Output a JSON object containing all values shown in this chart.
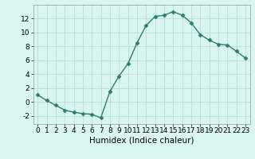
{
  "x": [
    0,
    1,
    2,
    3,
    4,
    5,
    6,
    7,
    8,
    9,
    10,
    11,
    12,
    13,
    14,
    15,
    16,
    17,
    18,
    19,
    20,
    21,
    22,
    23
  ],
  "y": [
    1,
    0.2,
    -0.5,
    -1.2,
    -1.5,
    -1.7,
    -1.8,
    -2.3,
    1.5,
    3.7,
    5.5,
    8.5,
    11.0,
    12.3,
    12.5,
    13.0,
    12.5,
    11.4,
    9.7,
    8.9,
    8.3,
    8.2,
    7.3,
    6.3
  ],
  "line_color": "#2d7d6e",
  "marker": "D",
  "marker_size": 2.5,
  "bg_color": "#d8f5f0",
  "grid_color": "#b8ddd8",
  "xlabel": "Humidex (Indice chaleur)",
  "xlim": [
    -0.5,
    23.5
  ],
  "ylim": [
    -3.2,
    14.0
  ],
  "yticks": [
    -2,
    0,
    2,
    4,
    6,
    8,
    10,
    12
  ],
  "xticks": [
    0,
    1,
    2,
    3,
    4,
    5,
    6,
    7,
    8,
    9,
    10,
    11,
    12,
    13,
    14,
    15,
    16,
    17,
    18,
    19,
    20,
    21,
    22,
    23
  ],
  "xlabel_fontsize": 7.5,
  "tick_fontsize": 6.5,
  "linewidth": 1.0
}
